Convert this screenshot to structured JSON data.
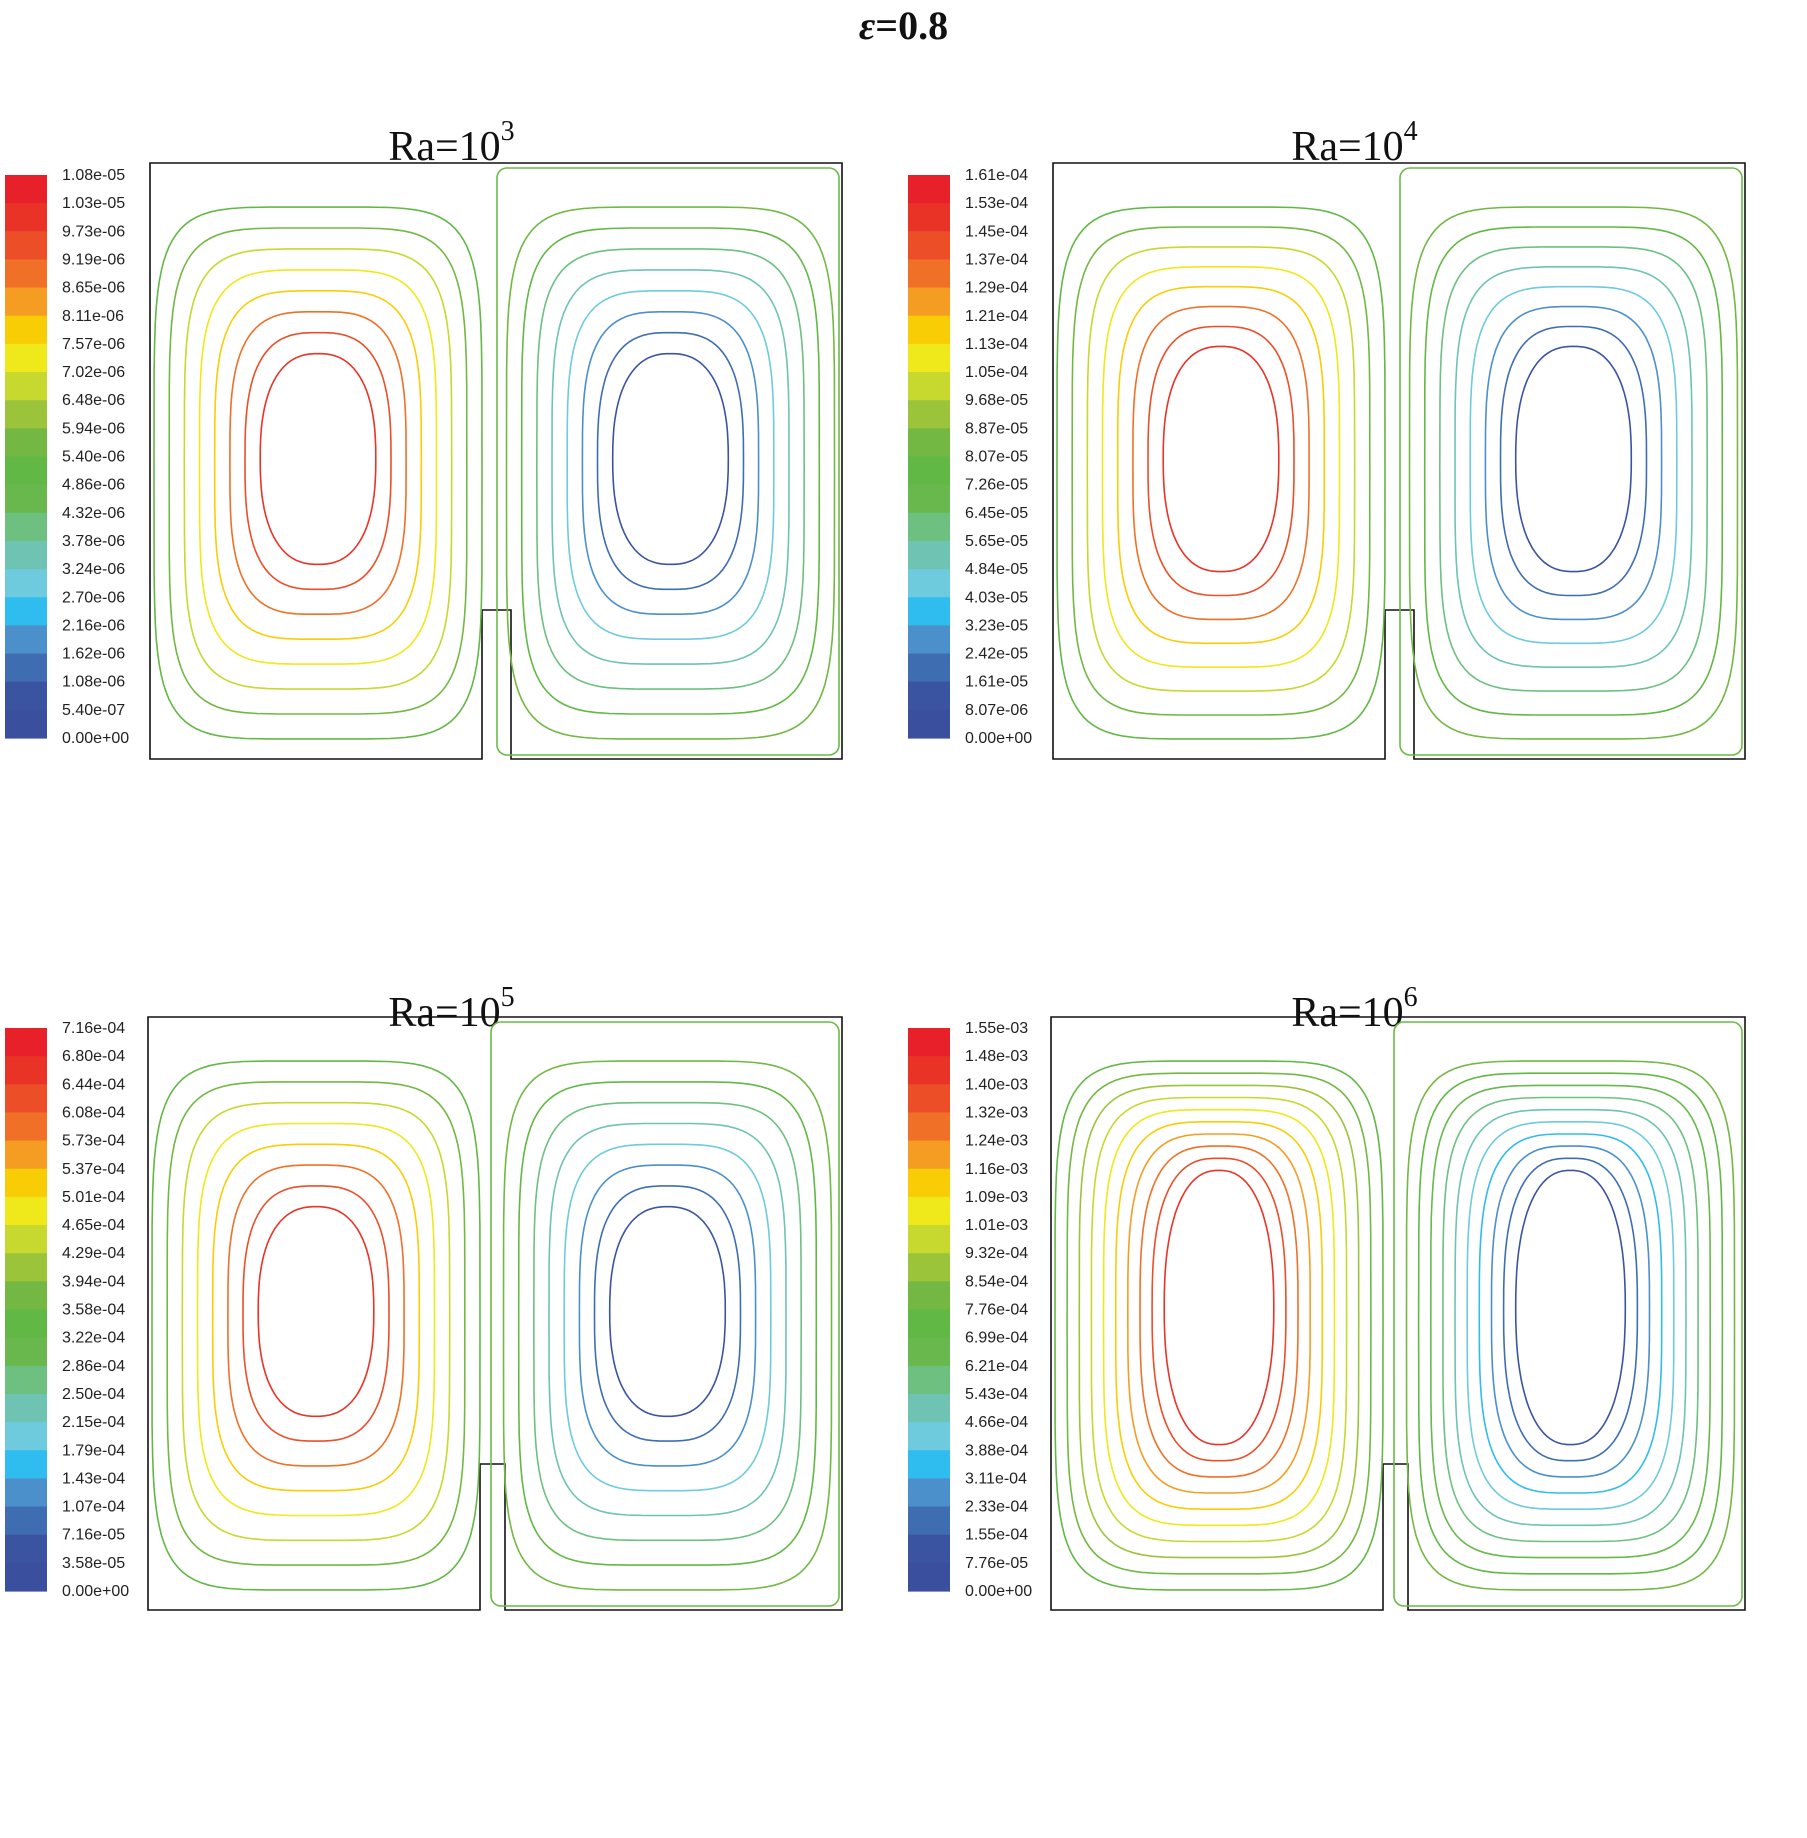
{
  "figure": {
    "title_prefix": "ε",
    "title_suffix": "=0.8"
  },
  "chart_data": [
    {
      "type": "contour",
      "title_base": "Ra=10",
      "title_exp": "3",
      "colorbar_ticks": [
        "1.08e-05",
        "1.03e-05",
        "9.73e-06",
        "9.19e-06",
        "8.65e-06",
        "8.11e-06",
        "7.57e-06",
        "7.02e-06",
        "6.48e-06",
        "5.94e-06",
        "5.40e-06",
        "4.86e-06",
        "4.32e-06",
        "3.78e-06",
        "3.24e-06",
        "2.70e-06",
        "2.16e-06",
        "1.62e-06",
        "1.08e-06",
        "5.40e-07",
        "0.00e+00"
      ],
      "contour_levels_per_cell": 8,
      "inner_ring_aspect": 0.5
    },
    {
      "type": "contour",
      "title_base": "Ra=10",
      "title_exp": "4",
      "colorbar_ticks": [
        "1.61e-04",
        "1.53e-04",
        "1.45e-04",
        "1.37e-04",
        "1.29e-04",
        "1.21e-04",
        "1.13e-04",
        "1.05e-04",
        "9.68e-05",
        "8.87e-05",
        "8.07e-05",
        "7.26e-05",
        "6.45e-05",
        "5.65e-05",
        "4.84e-05",
        "4.03e-05",
        "3.23e-05",
        "2.42e-05",
        "1.61e-05",
        "8.07e-06",
        "0.00e+00"
      ],
      "contour_levels_per_cell": 8,
      "inner_ring_aspect": 0.55
    },
    {
      "type": "contour",
      "title_base": "Ra=10",
      "title_exp": "5",
      "colorbar_ticks": [
        "7.16e-04",
        "6.80e-04",
        "6.44e-04",
        "6.08e-04",
        "5.73e-04",
        "5.37e-04",
        "5.01e-04",
        "4.65e-04",
        "4.29e-04",
        "3.94e-04",
        "3.58e-04",
        "3.22e-04",
        "2.86e-04",
        "2.50e-04",
        "2.15e-04",
        "1.79e-04",
        "1.43e-04",
        "1.07e-04",
        "7.16e-05",
        "3.58e-05",
        "0.00e+00"
      ],
      "contour_levels_per_cell": 8,
      "inner_ring_aspect": 0.5
    },
    {
      "type": "contour",
      "title_base": "Ra=10",
      "title_exp": "6",
      "colorbar_ticks": [
        "1.55e-03",
        "1.48e-03",
        "1.40e-03",
        "1.32e-03",
        "1.24e-03",
        "1.16e-03",
        "1.09e-03",
        "1.01e-03",
        "9.32e-04",
        "8.54e-04",
        "7.76e-04",
        "6.99e-04",
        "6.21e-04",
        "5.43e-04",
        "4.66e-04",
        "3.88e-04",
        "3.11e-04",
        "2.33e-04",
        "1.55e-04",
        "7.76e-05",
        "0.00e+00"
      ],
      "contour_levels_per_cell": 10,
      "inner_ring_aspect": 0.75
    }
  ],
  "colormap": [
    "#e8202a",
    "#e93327",
    "#ec4e28",
    "#ef7026",
    "#f59d23",
    "#f9cd06",
    "#efe81a",
    "#c7d82e",
    "#9cc43a",
    "#72b843",
    "#62b845",
    "#68b84d",
    "#6dc080",
    "#6ec3b3",
    "#6dcbdd",
    "#2ebdee",
    "#4b8fcb",
    "#3f6db2",
    "#3a54a1",
    "#3b4f9f"
  ],
  "colorbar_segments": 20
}
